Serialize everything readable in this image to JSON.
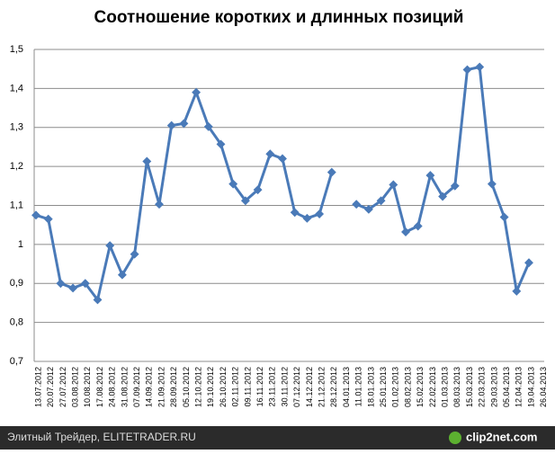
{
  "chart_data": {
    "type": "line",
    "title": "Соотношение коротких и длинных позиций",
    "categories": [
      "13.07.2012",
      "20.07.2012",
      "27.07.2012",
      "03.08.2012",
      "10.08.2012",
      "17.08.2012",
      "24.08.2012",
      "31.08.2012",
      "07.09.2012",
      "14.09.2012",
      "21.09.2012",
      "28.09.2012",
      "05.10.2012",
      "12.10.2012",
      "19.10.2012",
      "26.10.2012",
      "02.11.2012",
      "09.11.2012",
      "16.11.2012",
      "23.11.2012",
      "30.11.2012",
      "07.12.2012",
      "14.12.2012",
      "21.12.2012",
      "28.12.2012",
      "04.01.2013",
      "11.01.2013",
      "18.01.2013",
      "25.01.2013",
      "01.02.2013",
      "08.02.2013",
      "15.02.2013",
      "22.02.2013",
      "01.03.2013",
      "08.03.2013",
      "15.03.2013",
      "22.03.2013",
      "29.03.2013",
      "05.04.2013",
      "12.04.2013",
      "19.04.2013",
      "26.04.2013"
    ],
    "series": [
      {
        "name": "Соотношение",
        "color": "#4a7ab8",
        "values": [
          1.075,
          1.065,
          0.9,
          0.888,
          0.9,
          0.858,
          0.997,
          0.922,
          0.975,
          1.213,
          1.103,
          1.305,
          1.31,
          1.39,
          1.302,
          1.257,
          1.155,
          1.112,
          1.14,
          1.232,
          1.22,
          1.082,
          1.067,
          1.078,
          1.185,
          null,
          1.103,
          1.09,
          1.112,
          1.153,
          1.032,
          1.047,
          1.177,
          1.123,
          1.15,
          1.448,
          1.455,
          1.155,
          1.07,
          0.88,
          0.953,
          null
        ]
      }
    ],
    "ylim": [
      0.7,
      1.5
    ],
    "yticks": [
      {
        "value": 0.7,
        "label": "0,7"
      },
      {
        "value": 0.8,
        "label": "0,8"
      },
      {
        "value": 0.9,
        "label": "0,9"
      },
      1,
      {
        "value": 1.1,
        "label": "1,1"
      },
      {
        "value": 1.2,
        "label": "1,2"
      },
      {
        "value": 1.3,
        "label": "1,3"
      },
      {
        "value": 1.4,
        "label": "1,4"
      },
      {
        "value": 1.5,
        "label": "1,5"
      }
    ],
    "grid": true
  },
  "footer": {
    "left": "Элитный Трейдер, ELITETRADER.RU",
    "right": "clip2net.com"
  }
}
